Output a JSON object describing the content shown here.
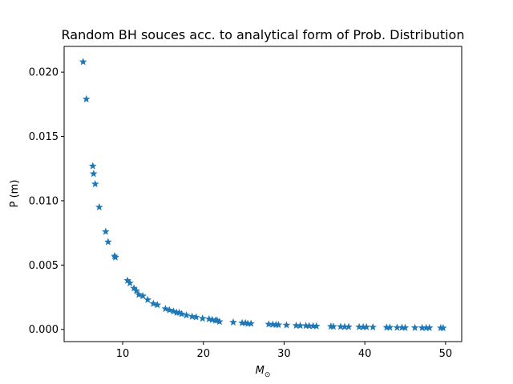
{
  "chart_data": {
    "type": "scatter",
    "title": "Random BH souces acc. to analytical form of Prob. Distribution",
    "xlabel": "M",
    "xlabel_subscript": "⊙",
    "ylabel": "P (m)",
    "xlim": [
      2.75,
      52.0
    ],
    "ylim": [
      -0.00095,
      0.022
    ],
    "xticks": [
      10,
      20,
      30,
      40,
      50
    ],
    "yticks": [
      0.0,
      0.005,
      0.01,
      0.015,
      0.02
    ],
    "ytick_labels": [
      "0.000",
      "0.005",
      "0.010",
      "0.015",
      "0.020"
    ],
    "grid": false,
    "legend": "none",
    "marker": "star",
    "color": "#1f77b4",
    "x": [
      5.1,
      5.5,
      6.3,
      6.4,
      6.6,
      7.1,
      7.9,
      8.2,
      9.0,
      9.1,
      10.6,
      10.9,
      11.4,
      11.7,
      12.0,
      12.5,
      13.1,
      13.8,
      14.3,
      15.3,
      15.8,
      16.3,
      16.7,
      17.0,
      17.3,
      17.9,
      18.6,
      19.1,
      19.9,
      20.7,
      21.1,
      21.5,
      21.7,
      22.0,
      23.7,
      24.8,
      25.2,
      25.5,
      25.9,
      28.1,
      28.6,
      29.0,
      29.3,
      30.3,
      31.5,
      32.0,
      32.7,
      33.1,
      33.6,
      34.0,
      35.8,
      36.1,
      37.0,
      37.5,
      38.0,
      39.3,
      39.8,
      40.2,
      41.0,
      42.7,
      43.1,
      44.0,
      44.6,
      45.0,
      46.2,
      47.1,
      47.6,
      48.0,
      49.4,
      49.7
    ],
    "y": [
      0.0208,
      0.0179,
      0.0127,
      0.0121,
      0.0113,
      0.0095,
      0.0076,
      0.0068,
      0.0057,
      0.0056,
      0.0038,
      0.0036,
      0.0032,
      0.003,
      0.0027,
      0.0026,
      0.0023,
      0.002,
      0.0019,
      0.0016,
      0.0015,
      0.0014,
      0.0013,
      0.0013,
      0.0012,
      0.0011,
      0.001,
      0.00095,
      0.00085,
      0.0008,
      0.00075,
      0.0007,
      0.0007,
      0.0006,
      0.00055,
      0.0005,
      0.0005,
      0.00045,
      0.00045,
      0.0004,
      0.00038,
      0.00036,
      0.00035,
      0.00033,
      0.0003,
      0.00029,
      0.00028,
      0.00027,
      0.00026,
      0.00025,
      0.00023,
      0.00022,
      0.00021,
      0.0002,
      0.0002,
      0.00019,
      0.00018,
      0.00018,
      0.00017,
      0.00015,
      0.00015,
      0.00014,
      0.00014,
      0.00013,
      0.00013,
      0.00012,
      0.00012,
      0.00012,
      0.00011,
      0.00011
    ]
  }
}
